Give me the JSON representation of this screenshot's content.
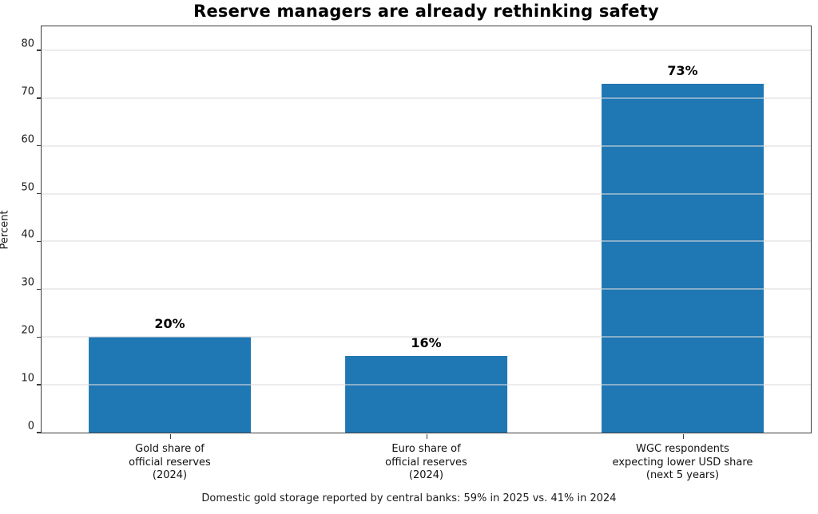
{
  "chart_data": {
    "type": "bar",
    "title": "Reserve managers are already rethinking safety",
    "categories": [
      "Gold share of\nofficial reserves\n(2024)",
      "Euro share of\nofficial reserves\n(2024)",
      "WGC respondents\nexpecting lower USD share\n(next 5 years)"
    ],
    "values": [
      20,
      16,
      73
    ],
    "value_labels": [
      "20%",
      "16%",
      "73%"
    ],
    "xlabel": "",
    "ylabel": "Percent",
    "ylim": [
      0,
      85
    ],
    "yticks": [
      0,
      10,
      20,
      30,
      40,
      50,
      60,
      70,
      80
    ],
    "grid": true,
    "legend": null,
    "bar_color": "#1f77b4",
    "annotation": "Domestic gold storage reported by central banks: 59% in 2025 vs. 41% in 2024"
  }
}
